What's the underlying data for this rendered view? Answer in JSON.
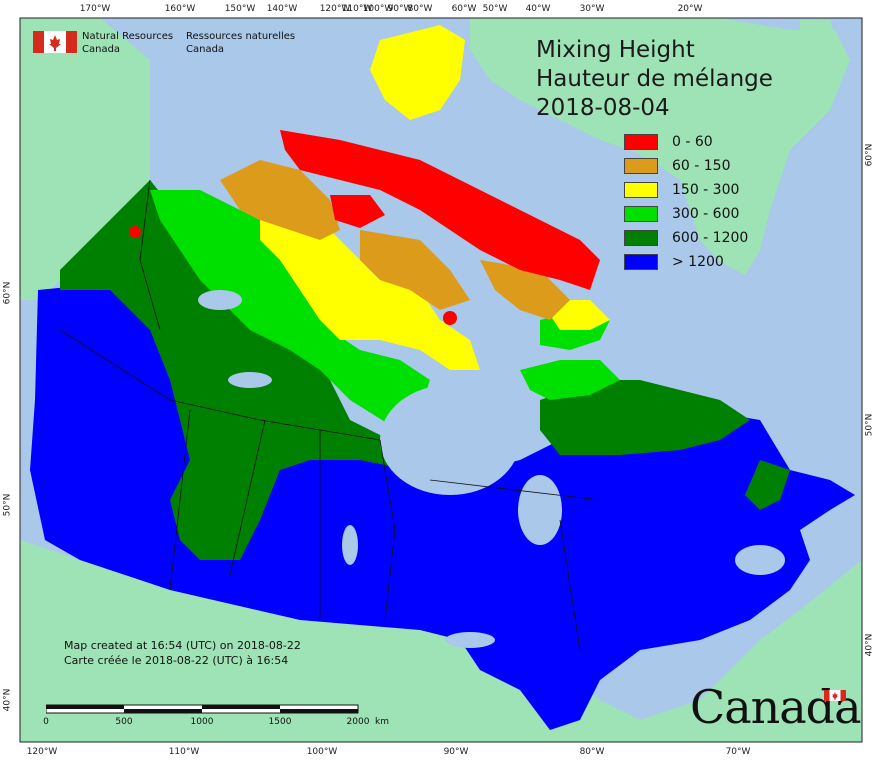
{
  "agency": {
    "en": [
      "Natural Resources",
      "Canada"
    ],
    "fr": [
      "Ressources naturelles",
      "Canada"
    ]
  },
  "title": {
    "line1": "Mixing Height",
    "line2": "Hauteur de mélange",
    "date": "2018-08-04"
  },
  "legend": [
    {
      "label": "0 - 60",
      "color": "#ff0000"
    },
    {
      "label": "60 - 150",
      "color": "#dc9b1a"
    },
    {
      "label": "150 - 300",
      "color": "#ffff00"
    },
    {
      "label": "300 - 600",
      "color": "#00e000"
    },
    {
      "label": "600 - 1200",
      "color": "#008000"
    },
    {
      "label": "> 1200",
      "color": "#0000ff"
    }
  ],
  "credit": {
    "en": "Map created at 16:54 (UTC) on 2018-08-22",
    "fr": "Carte créée le 2018-08-22 (UTC) à 16:54"
  },
  "scalebar": {
    "ticks": [
      "0",
      "500",
      "1000",
      "1500",
      "2000"
    ],
    "unit": "km"
  },
  "wordmark": "Canada",
  "graticule": {
    "top": [
      "170°W",
      "160°W",
      "150°W",
      "140°W",
      "120°W",
      "110°W",
      "100°W",
      "90°W",
      "80°W",
      "60°W",
      "50°W",
      "40°W",
      "30°W",
      "20°W"
    ],
    "bottom": [
      "120°W",
      "110°W",
      "100°W",
      "90°W",
      "80°W",
      "70°W"
    ],
    "left": [
      "60°N",
      "50°N",
      "40°N"
    ],
    "right": [
      "60°N",
      "50°N",
      "40°N"
    ]
  },
  "colors": {
    "ocean": "#a9c8ea",
    "land_other": "#9ee3b6",
    "border": "#111111"
  }
}
